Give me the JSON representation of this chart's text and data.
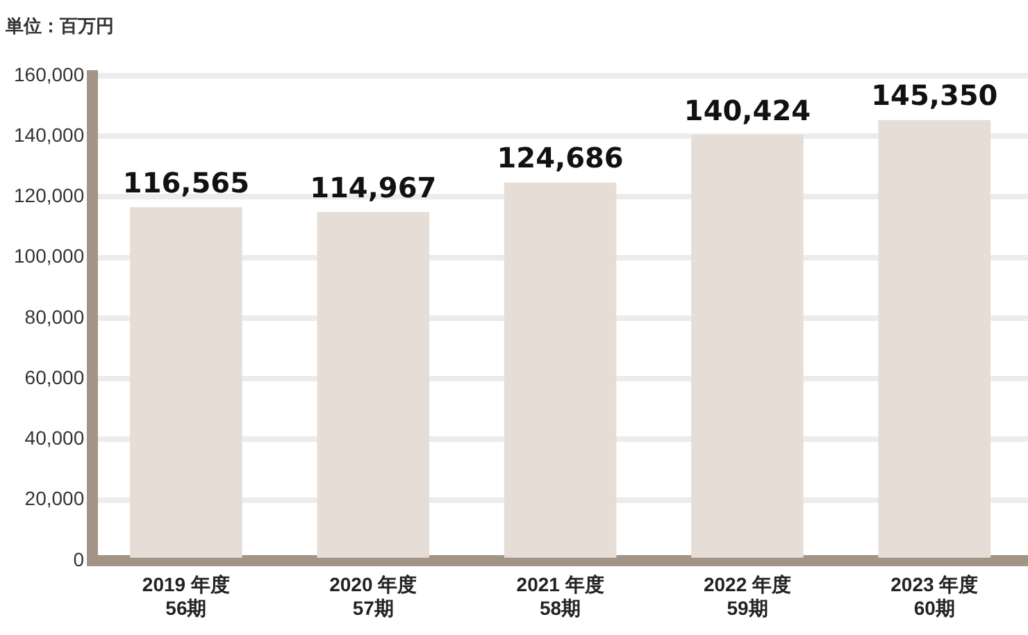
{
  "chart_data": {
    "type": "bar",
    "ylabel": "単位：百万円",
    "categories": [
      "2019 年度\n56期",
      "2020 年度\n57期",
      "2021 年度\n58期",
      "2022 年度\n59期",
      "2023 年度\n60期"
    ],
    "values": [
      116565,
      114967,
      124686,
      140424,
      145350
    ],
    "value_labels": [
      "116,565",
      "114,967",
      "124,686",
      "140,424",
      "145,350"
    ],
    "color": "#e6ddd7",
    "ylim": [
      0,
      160000
    ],
    "yticks": [
      0,
      {
        "value": 20000,
        "label": "20,000"
      },
      {
        "value": 40000,
        "label": "40,000"
      },
      {
        "value": 60000,
        "label": "60,000"
      },
      {
        "value": 80000,
        "label": "80,000"
      },
      {
        "value": 100000,
        "label": "100,000"
      },
      {
        "value": 120000,
        "label": "120,000"
      },
      {
        "value": 140000,
        "label": "140,000"
      },
      {
        "value": 160000,
        "label": "160,000"
      }
    ],
    "grid": "y",
    "legend": false
  }
}
